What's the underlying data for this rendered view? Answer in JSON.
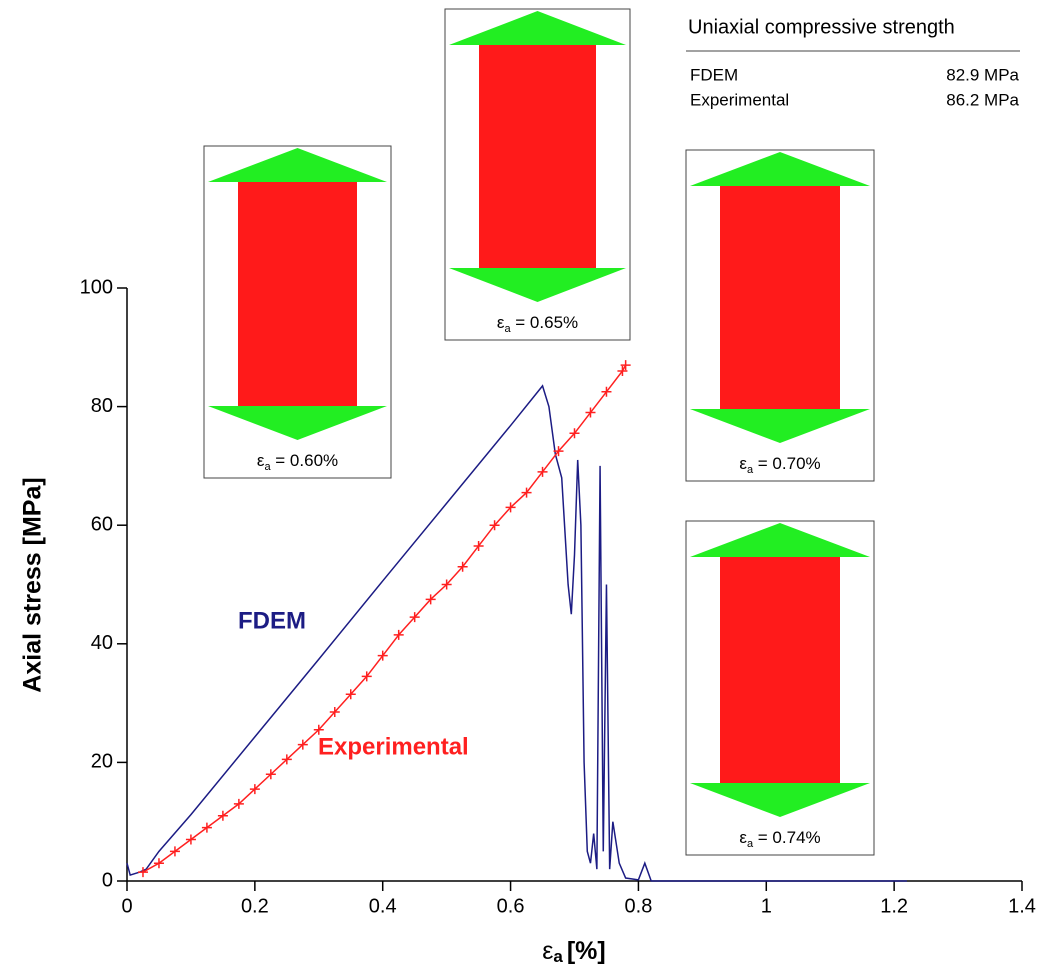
{
  "chart_data": {
    "type": "line",
    "x_label": {
      "symbol": "ε",
      "subscript": "a",
      "rest": "[%]"
    },
    "y_label": "Axial stress [MPa]",
    "xlim": [
      0,
      1.4
    ],
    "xticks": [
      0,
      0.2,
      0.4,
      0.6,
      0.8,
      1,
      1.2,
      1.4
    ],
    "ylim": [
      0,
      100
    ],
    "yticks": [
      0,
      20,
      40,
      60,
      80,
      100
    ],
    "series": [
      {
        "name": "FDEM",
        "color": "#1c1c84",
        "marker": "none",
        "x": [
          0,
          0.005,
          0.02,
          0.03,
          0.05,
          0.1,
          0.2,
          0.3,
          0.4,
          0.5,
          0.6,
          0.65,
          0.66,
          0.67,
          0.68,
          0.69,
          0.695,
          0.7,
          0.705,
          0.71,
          0.715,
          0.72,
          0.725,
          0.73,
          0.735,
          0.74,
          0.745,
          0.75,
          0.755,
          0.76,
          0.77,
          0.78,
          0.8,
          0.81,
          0.82,
          1.0,
          1.22
        ],
        "values": [
          3,
          1,
          1.5,
          2,
          5,
          11.2,
          24.3,
          37.4,
          50.6,
          63.7,
          76.8,
          83.5,
          80,
          72,
          68,
          50,
          45,
          55,
          71,
          60,
          20,
          5,
          3,
          8,
          2,
          70,
          5,
          50,
          2,
          10,
          3,
          0.5,
          0.2,
          3,
          0,
          0,
          0
        ]
      },
      {
        "name": "Experimental",
        "color": "#ff2020",
        "marker": "plus",
        "x": [
          0.025,
          0.05,
          0.075,
          0.1,
          0.125,
          0.15,
          0.175,
          0.2,
          0.225,
          0.25,
          0.275,
          0.3,
          0.325,
          0.35,
          0.375,
          0.4,
          0.425,
          0.45,
          0.475,
          0.5,
          0.525,
          0.55,
          0.575,
          0.6,
          0.625,
          0.65,
          0.675,
          0.7,
          0.725,
          0.75,
          0.775,
          0.78
        ],
        "values": [
          1.5,
          3,
          5,
          7,
          9,
          11,
          13,
          15.5,
          18,
          20.5,
          23,
          25.5,
          28.5,
          31.5,
          34.5,
          38,
          41.5,
          44.5,
          47.5,
          50,
          53,
          56.5,
          60,
          63,
          65.5,
          69,
          72.5,
          75.5,
          79,
          82.5,
          86,
          87
        ]
      }
    ],
    "insets": [
      {
        "symbol": "ε",
        "subscript": "a",
        "rest": " = 0.60%"
      },
      {
        "symbol": "ε",
        "subscript": "a",
        "rest": " = 0.65%"
      },
      {
        "symbol": "ε",
        "subscript": "a",
        "rest": " = 0.70%"
      },
      {
        "symbol": "ε",
        "subscript": "a",
        "rest": " = 0.74%"
      }
    ],
    "table": {
      "title": "Uniaxial compressive strength",
      "rows": [
        [
          "FDEM",
          "82.9 MPa"
        ],
        [
          "Experimental",
          "86.2 MPa"
        ]
      ]
    }
  }
}
